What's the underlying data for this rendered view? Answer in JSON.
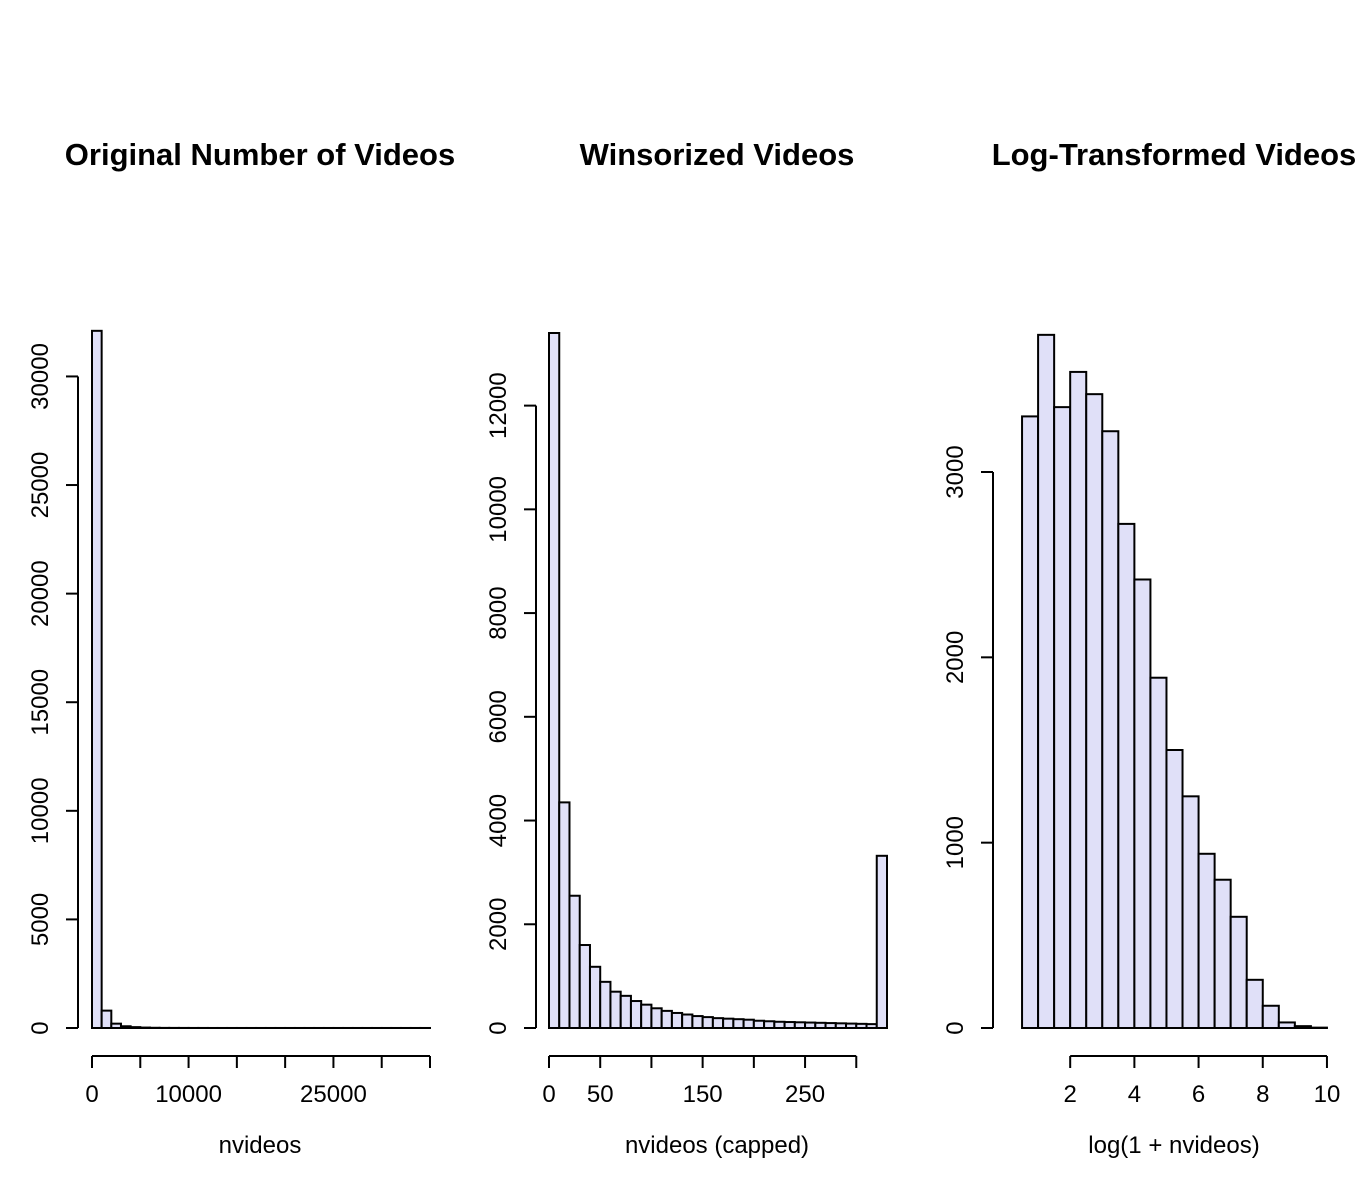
{
  "chart_data": [
    {
      "type": "bar",
      "title": "Original Number of Videos",
      "xlabel": "nvideos",
      "ylabel": "",
      "xlim": [
        0,
        35000
      ],
      "ylim": [
        0,
        32000
      ],
      "x_ticks": [
        0,
        5000,
        10000,
        15000,
        20000,
        25000,
        30000,
        35000
      ],
      "x_tick_labels": [
        "0",
        "",
        "10000",
        "",
        "",
        "25000",
        "",
        ""
      ],
      "y_ticks": [
        0,
        5000,
        10000,
        15000,
        20000,
        25000,
        30000
      ],
      "y_tick_labels": [
        "0",
        "5000",
        "10000",
        "15000",
        "20000",
        "25000",
        "30000"
      ],
      "bin_width": 1000,
      "bin_start": 0,
      "values": [
        32100,
        800,
        200,
        80,
        40,
        20,
        10,
        5,
        4,
        3,
        2,
        2,
        1,
        1,
        1,
        1,
        1,
        1,
        1,
        1,
        1,
        1,
        1,
        1,
        1,
        1,
        1,
        1,
        1,
        1,
        1,
        1,
        1,
        1,
        1
      ]
    },
    {
      "type": "bar",
      "title": "Winsorized Videos",
      "xlabel": "nvideos (capped)",
      "ylabel": "",
      "xlim": [
        0,
        330
      ],
      "ylim": [
        0,
        13400
      ],
      "x_ticks": [
        0,
        50,
        100,
        150,
        200,
        250,
        300
      ],
      "x_tick_labels": [
        "0",
        "50",
        "",
        "150",
        "",
        "250",
        ""
      ],
      "y_ticks": [
        0,
        2000,
        4000,
        6000,
        8000,
        10000,
        12000
      ],
      "y_tick_labels": [
        "0",
        "2000",
        "4000",
        "6000",
        "8000",
        "10000",
        "12000"
      ],
      "bin_width": 10,
      "bin_start": 0,
      "values": [
        13400,
        4350,
        2550,
        1600,
        1180,
        890,
        700,
        620,
        520,
        450,
        380,
        330,
        290,
        260,
        230,
        210,
        190,
        180,
        170,
        160,
        140,
        130,
        120,
        115,
        110,
        105,
        100,
        95,
        90,
        85,
        80,
        75,
        3320
      ]
    },
    {
      "type": "bar",
      "title": "Log-Transformed Videos",
      "xlabel": "log(1 + nvideos)",
      "ylabel": "",
      "xlim": [
        0,
        10.5
      ],
      "ylim": [
        0,
        3750
      ],
      "x_ticks": [
        2,
        4,
        6,
        8,
        10
      ],
      "x_tick_labels": [
        "2",
        "4",
        "6",
        "8",
        "10"
      ],
      "y_ticks": [
        0,
        1000,
        2000,
        3000
      ],
      "y_tick_labels": [
        "0",
        "1000",
        "2000",
        "3000"
      ],
      "bin_width": 0.5,
      "bin_start": 0.5,
      "values": [
        3300,
        3740,
        3350,
        3540,
        3420,
        3220,
        2720,
        2420,
        1890,
        1500,
        1250,
        940,
        800,
        600,
        260,
        120,
        30,
        10,
        2
      ]
    }
  ]
}
